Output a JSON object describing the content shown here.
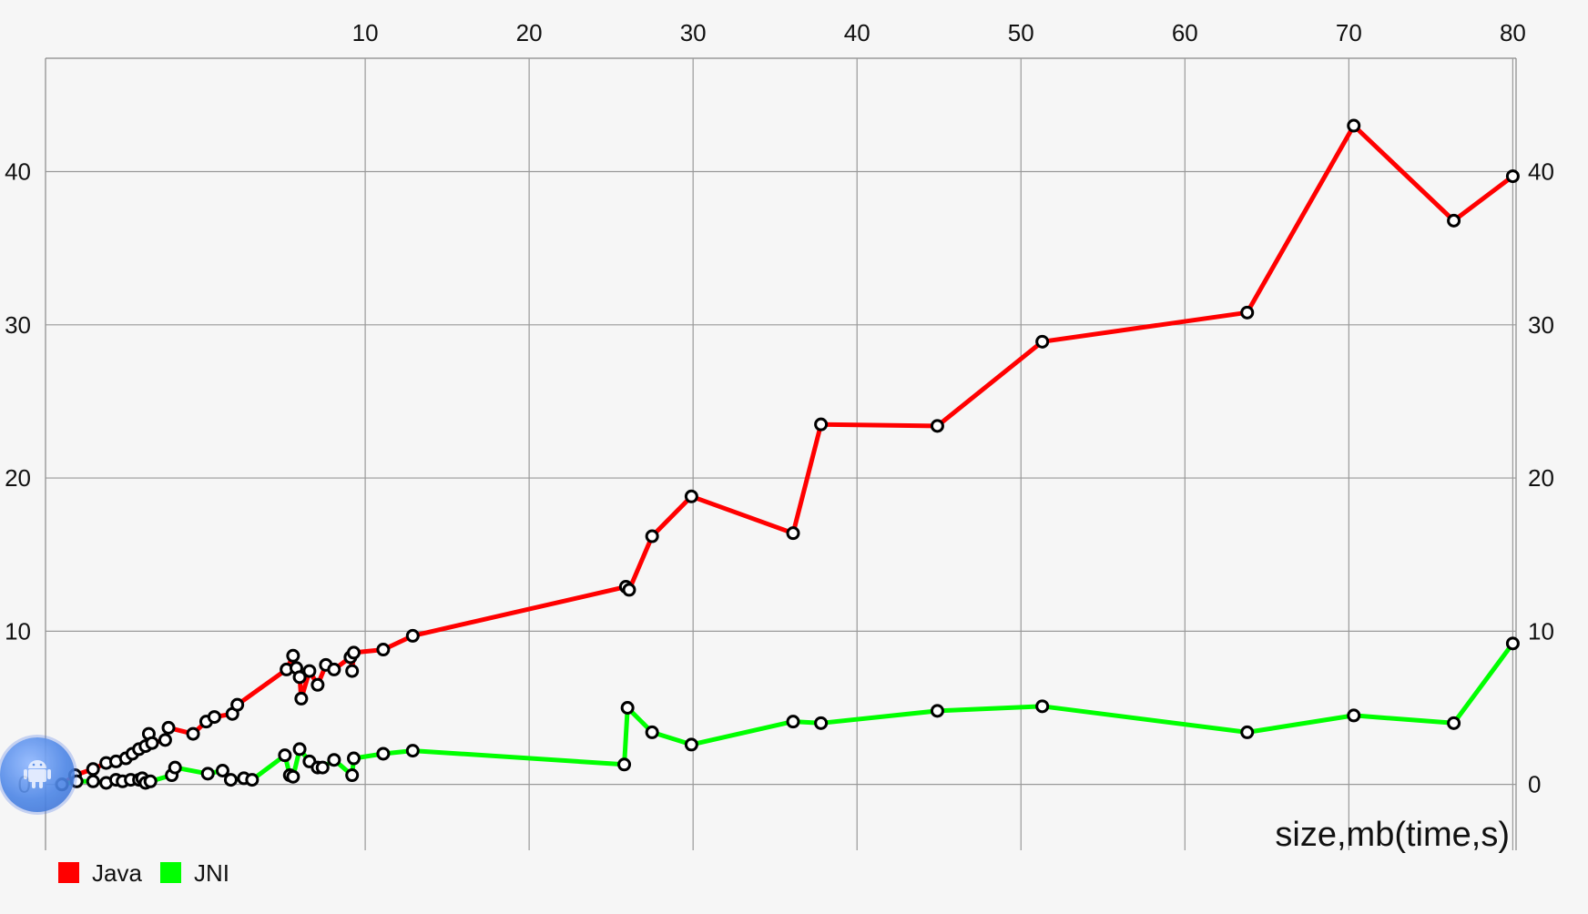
{
  "legend_position": "bottom-left",
  "grid": true,
  "chart_data": {
    "type": "line",
    "title": "",
    "xlabel": "size,mb(time,s)",
    "ylabel": "",
    "xlim": [
      -9.5,
      80.2
    ],
    "ylim": [
      -4.3,
      47.4
    ],
    "x_ticks": [
      10,
      20,
      30,
      40,
      50,
      60,
      70,
      80
    ],
    "y_ticks": [
      0,
      10,
      20,
      30,
      40
    ],
    "series": [
      {
        "name": "Java",
        "color": "#ff0000",
        "points": [
          [
            -8.5,
            0.0
          ],
          [
            -7.7,
            0.6
          ],
          [
            -6.6,
            1.0
          ],
          [
            -5.8,
            1.4
          ],
          [
            -5.2,
            1.5
          ],
          [
            -4.6,
            1.7
          ],
          [
            -4.2,
            2.0
          ],
          [
            -3.8,
            2.3
          ],
          [
            -3.4,
            2.5
          ],
          [
            -3.2,
            3.3
          ],
          [
            -3.0,
            2.7
          ],
          [
            -2.2,
            2.9
          ],
          [
            -2.0,
            3.7
          ],
          [
            -0.5,
            3.3
          ],
          [
            0.3,
            4.1
          ],
          [
            0.8,
            4.4
          ],
          [
            1.9,
            4.6
          ],
          [
            2.2,
            5.2
          ],
          [
            5.2,
            7.5
          ],
          [
            5.6,
            8.4
          ],
          [
            5.8,
            7.6
          ],
          [
            6.0,
            7.0
          ],
          [
            6.1,
            5.6
          ],
          [
            6.6,
            7.4
          ],
          [
            7.1,
            6.5
          ],
          [
            7.6,
            7.8
          ],
          [
            8.1,
            7.5
          ],
          [
            9.1,
            8.3
          ],
          [
            9.2,
            7.4
          ],
          [
            9.3,
            8.6
          ],
          [
            11.1,
            8.8
          ],
          [
            12.9,
            9.7
          ],
          [
            25.9,
            12.9
          ],
          [
            26.1,
            12.7
          ],
          [
            27.5,
            16.2
          ],
          [
            29.9,
            18.8
          ],
          [
            36.1,
            16.4
          ],
          [
            37.8,
            23.5
          ],
          [
            44.9,
            23.4
          ],
          [
            51.3,
            28.9
          ],
          [
            63.8,
            30.8
          ],
          [
            70.3,
            43.0
          ],
          [
            76.4,
            36.8
          ],
          [
            80.0,
            39.7
          ]
        ]
      },
      {
        "name": "JNI",
        "color": "#00ff00",
        "points": [
          [
            -8.5,
            0.0
          ],
          [
            -7.6,
            0.2
          ],
          [
            -6.6,
            0.2
          ],
          [
            -5.8,
            0.1
          ],
          [
            -5.2,
            0.3
          ],
          [
            -4.8,
            0.2
          ],
          [
            -4.3,
            0.3
          ],
          [
            -3.8,
            0.3
          ],
          [
            -3.6,
            0.4
          ],
          [
            -3.4,
            0.1
          ],
          [
            -3.1,
            0.2
          ],
          [
            -1.8,
            0.6
          ],
          [
            -1.6,
            1.1
          ],
          [
            0.4,
            0.7
          ],
          [
            1.3,
            0.9
          ],
          [
            1.8,
            0.3
          ],
          [
            2.6,
            0.4
          ],
          [
            3.1,
            0.3
          ],
          [
            5.1,
            1.9
          ],
          [
            5.4,
            0.6
          ],
          [
            5.6,
            0.5
          ],
          [
            6.0,
            2.3
          ],
          [
            6.6,
            1.5
          ],
          [
            7.1,
            1.1
          ],
          [
            7.4,
            1.1
          ],
          [
            8.1,
            1.6
          ],
          [
            9.2,
            0.6
          ],
          [
            9.3,
            1.7
          ],
          [
            11.1,
            2.0
          ],
          [
            12.9,
            2.2
          ],
          [
            25.8,
            1.3
          ],
          [
            26.0,
            5.0
          ],
          [
            27.5,
            3.4
          ],
          [
            29.9,
            2.6
          ],
          [
            36.1,
            4.1
          ],
          [
            37.8,
            4.0
          ],
          [
            44.9,
            4.8
          ],
          [
            51.3,
            5.1
          ],
          [
            63.8,
            3.4
          ],
          [
            70.3,
            4.5
          ],
          [
            76.4,
            4.0
          ],
          [
            80.0,
            9.2
          ]
        ]
      }
    ]
  }
}
